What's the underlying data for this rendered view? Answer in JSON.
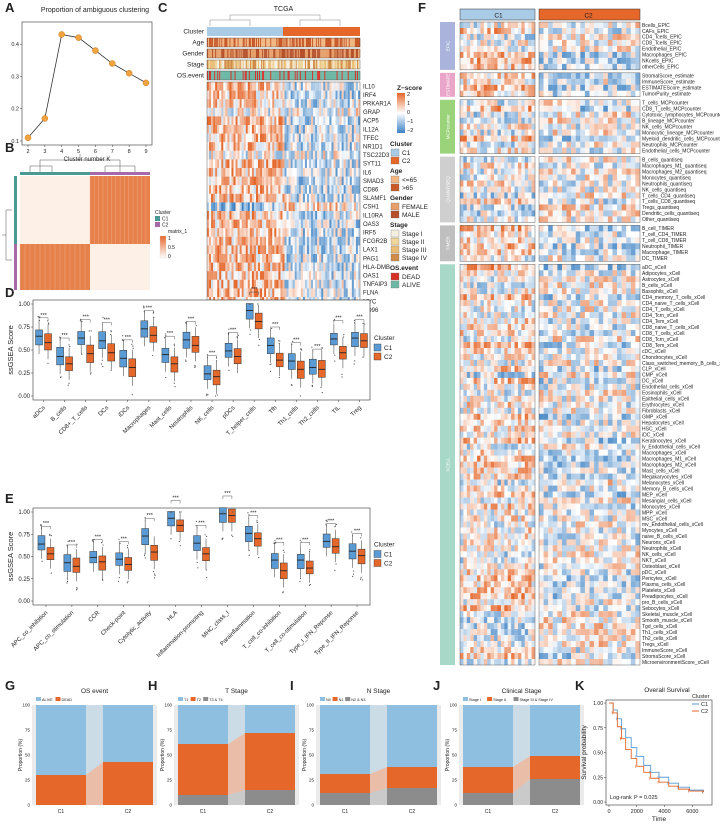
{
  "colors": {
    "c1": "#5b9bd5",
    "c2": "#e5672a",
    "c1_light": "#a9cbe6",
    "c2_light": "#f3a97c",
    "grey": "#8c8c8c",
    "heat_hi": "#e5672a",
    "heat_lo": "#3d82c4"
  },
  "panel_letters": [
    "A",
    "B",
    "C",
    "D",
    "E",
    "F",
    "G",
    "H",
    "I",
    "J",
    "K"
  ],
  "chart_data": [
    {
      "id": "A",
      "type": "line",
      "title": "Proportion of ambiguous clustering",
      "xlabel": "Cluster number K",
      "ylabel": "",
      "x": [
        2,
        3,
        4,
        5,
        6,
        7,
        8,
        9
      ],
      "y": [
        0.11,
        0.17,
        0.43,
        0.42,
        0.38,
        0.34,
        0.31,
        0.28
      ],
      "xlim": [
        2,
        9
      ],
      "ylim": [
        0.1,
        0.45
      ],
      "yticks": [
        "0.1",
        "0.2",
        "0.3",
        "0.4"
      ]
    },
    {
      "id": "B",
      "type": "heatmap",
      "title": "Consensus matrix",
      "legend_title": "Cluster",
      "legend_items": [
        "C1",
        "C2"
      ],
      "scale_title": "matrix_1",
      "scale_ticks": [
        "1",
        "0.5",
        "0"
      ]
    },
    {
      "id": "C",
      "type": "heatmap",
      "title": "TCGA",
      "annotation_rows": [
        "Cluster",
        "Age",
        "Gender",
        "Stage",
        "OS.event"
      ],
      "genes": [
        "IL10",
        "IRF4",
        "PRKAR1A",
        "GRAP",
        "ACP5",
        "IL12A",
        "TFEC",
        "NR1D1",
        "TSC22D3",
        "SYT11",
        "IL6",
        "SMAD3",
        "CD86",
        "SLAMF1",
        "CSH1",
        "IL10RA",
        "OAS3",
        "IRF5",
        "FCGR2B",
        "LAX1",
        "PAG1",
        "HLA-DMB",
        "OAS1",
        "TNFAIP3",
        "FLNA",
        "MYC",
        "CD96"
      ],
      "zscore_title": "Z−score",
      "zscore_ticks": [
        "2",
        "1",
        "0",
        "−1",
        "−2"
      ],
      "legends": [
        {
          "title": "Cluster",
          "items": [
            "C1",
            "C2"
          ]
        },
        {
          "title": "Age",
          "items": [
            "<=65",
            ">65"
          ]
        },
        {
          "title": "Gender",
          "items": [
            "FEMALE",
            "MALE"
          ]
        },
        {
          "title": "Stage",
          "items": [
            "Stage I",
            "Stage II",
            "Stage III",
            "Stage IV"
          ]
        },
        {
          "title": "OS.event",
          "items": [
            "DEAD",
            "ALIVE"
          ]
        }
      ]
    },
    {
      "id": "D",
      "type": "box",
      "ylabel": "ssGSEA Score",
      "ylim": [
        0,
        1
      ],
      "yticks": [
        "0.00",
        "0.25",
        "0.50",
        "0.75",
        "1.00"
      ],
      "legend_title": "Cluster",
      "legend_items": [
        "C1",
        "C2"
      ],
      "categories": [
        "aDCs",
        "B_cells",
        "CD8+_T_cells",
        "DCs",
        "iDCs",
        "Macrophages",
        "Mast_cells",
        "Neutrophils",
        "NK_cells",
        "pDCs",
        "T_helper_cells",
        "Tfh",
        "Th1_cells",
        "Th2_cells",
        "TIL",
        "Treg"
      ],
      "significance": [
        "***",
        "***",
        "***",
        "***",
        "***",
        "***",
        "***",
        "***",
        "***",
        "***",
        "***",
        "***",
        "***",
        "***",
        "***",
        "***"
      ],
      "series": [
        {
          "name": "C1",
          "median": [
            0.65,
            0.43,
            0.63,
            0.6,
            0.41,
            0.73,
            0.45,
            0.61,
            0.24,
            0.49,
            0.93,
            0.55,
            0.38,
            0.31,
            0.62,
            0.63
          ]
        },
        {
          "name": "C2",
          "median": [
            0.58,
            0.35,
            0.46,
            0.47,
            0.31,
            0.66,
            0.35,
            0.55,
            0.21,
            0.43,
            0.81,
            0.39,
            0.29,
            0.29,
            0.47,
            0.6
          ]
        }
      ]
    },
    {
      "id": "E",
      "type": "box",
      "ylabel": "ssGSEA Score",
      "ylim": [
        0,
        1
      ],
      "yticks": [
        "0.00",
        "0.25",
        "0.50",
        "0.75",
        "1.00"
      ],
      "legend_title": "Cluster",
      "legend_items": [
        "C1",
        "C2"
      ],
      "categories": [
        "APC_co_inhibition",
        "APC_co_stimulation",
        "CCR",
        "Check-point",
        "Cytolytic_activity",
        "HLA",
        "Inflammation-promoting",
        "MHC_class_I",
        "Parainflammation",
        "T_cell_co-inhibition",
        "T_cell_co-stimulation",
        "Type_I_IFN_Reponse",
        "Type_II_IFN_Reponse"
      ],
      "significance": [
        "***",
        "***",
        "***",
        "***",
        "***",
        "***",
        "***",
        "***",
        "***",
        "***",
        "***",
        "***",
        "***"
      ],
      "series": [
        {
          "name": "C1",
          "median": [
            0.64,
            0.43,
            0.49,
            0.47,
            0.73,
            0.93,
            0.65,
            0.98,
            0.76,
            0.46,
            0.46,
            0.67,
            0.56
          ]
        },
        {
          "name": "C2",
          "median": [
            0.53,
            0.39,
            0.44,
            0.41,
            0.55,
            0.85,
            0.53,
            0.96,
            0.7,
            0.34,
            0.37,
            0.61,
            0.51
          ]
        }
      ]
    },
    {
      "id": "F",
      "type": "heatmap",
      "clusters": [
        "C1",
        "C2"
      ],
      "groups": [
        {
          "name": "EPIC",
          "rows": [
            "Bcells_EPIC",
            "CAFs_EPIC",
            "CD4_Tcells_EPIC",
            "CD8_Tcells_EPIC",
            "Endothelial_EPIC",
            "Macrophages_EPIC",
            "NKcells_EPIC",
            "otherCells_EPIC"
          ]
        },
        {
          "name": "ESTIMATE",
          "rows": [
            "StromalScore_estimate",
            "ImmuneScore_estimate",
            "ESTIMATEScore_estimate",
            "TumorPurity_estimate"
          ]
        },
        {
          "name": "MCPcounter",
          "rows": [
            "T_cells_MCPcounter",
            "CD8_T_cells_MCPcounter",
            "Cytotoxic_lymphocytes_MCPcounter",
            "B_lineage_MCPcounter",
            "NK_cells_MCPcounter",
            "Monocytic_lineage_MCPcounter",
            "Myeloid_dendritic_cells_MCPcounter",
            "Neutrophils_MCPcounter",
            "Endothelial_cells_MCPcounter"
          ]
        },
        {
          "name": "QUANTISEQ",
          "rows": [
            "B_cells_quantiseq",
            "Macrophages_M1_quantiseq",
            "Macrophages_M2_quantiseq",
            "Monocytes_quantiseq",
            "Neutrophils_quantiseq",
            "NK_cells_quantiseq",
            "T_cells_CD4_quantiseq",
            "T_cells_CD8_quantiseq",
            "Tregs_quantiseq",
            "Dendritic_cells_quantiseq",
            "Other_quantiseq"
          ]
        },
        {
          "name": "TIMER",
          "rows": [
            "B_cell_TIMER",
            "T_cell_CD4_TIMER",
            "T_cell_CD8_TIMER",
            "Neutrophil_TIMER",
            "Macrophage_TIMER",
            "DC_TIMER"
          ]
        },
        {
          "name": "XCELL",
          "rows": [
            "aDC_xCell",
            "Adipocytes_xCell",
            "Astrocytes_xCell",
            "B_cells_xCell",
            "Basophils_xCell",
            "CD4_memory_T_cells_xCell",
            "CD4_naive_T_cells_xCell",
            "CD4_T_cells_xCell",
            "CD4_Tcm_xCell",
            "CD4_Tem_xCell",
            "CD8_naive_T_cells_xCell",
            "CD8_T_cells_xCell",
            "CD8_Tcm_xCell",
            "CD8_Tem_xCell",
            "cDC_xCell",
            "Chondrocytes_xCell",
            "Class_switched_memory_B_cells_xCell",
            "CLP_xCell",
            "CMP_xCell",
            "DC_xCell",
            "Endothelial_cells_xCell",
            "Eosinophils_xCell",
            "Epithelial_cells_xCell",
            "Erythrocytes_xCell",
            "Fibroblasts_xCell",
            "GMP_xCell",
            "Hepatocytes_xCell",
            "HSC_xCell",
            "iDC_xCell",
            "Keratinocytes_xCell",
            "ly_Endothelial_cells_xCell",
            "Macrophages_xCell",
            "Macrophages_M1_xCell",
            "Macrophages_M2_xCell",
            "Mast_cells_xCell",
            "Megakaryocytes_xCell",
            "Melanocytes_xCell",
            "Memory_B_cells_xCell",
            "MEP_xCell",
            "Mesangial_cells_xCell",
            "Monocytes_xCell",
            "MPP_xCell",
            "MSC_xCell",
            "mv_Endothelial_cells_xCell",
            "Myocytes_xCell",
            "naive_B_cells_xCell",
            "Neurons_xCell",
            "Neutrophils_xCell",
            "NK_cells_xCell",
            "NKT_xCell",
            "Osteoblast_xCell",
            "pDC_xCell",
            "Pericytes_xCell",
            "Plasma_cells_xCell",
            "Platelets_xCell",
            "Preadipocytes_xCell",
            "pro_B_cells_xCell",
            "Sebocytes_xCell",
            "Skeletal_muscle_xCell",
            "Smooth_muscle_xCell",
            "Tgd_cells_xCell",
            "Th1_cells_xCell",
            "Th2_cells_xCell",
            "Tregs_xCell",
            "ImmuneScore_xCell",
            "StromaScore_xCell",
            "MicroenvironmentScore_xCell"
          ]
        }
      ]
    },
    {
      "id": "G",
      "type": "stacked_bar",
      "title": "OS event",
      "ylabel": "Proportion (%)",
      "yticks": [
        "0",
        "25",
        "50",
        "75",
        "100"
      ],
      "categories": [
        "C1",
        "C2"
      ],
      "legend_items": [
        "ALIVE",
        "DEAD"
      ],
      "series": [
        {
          "name": "DEAD",
          "values": [
            30,
            43
          ]
        },
        {
          "name": "ALIVE",
          "values": [
            70,
            57
          ]
        }
      ]
    },
    {
      "id": "H",
      "type": "stacked_bar",
      "title": "T Stage",
      "ylabel": "Proportion (%)",
      "yticks": [
        "0",
        "25",
        "50",
        "75",
        "100"
      ],
      "categories": [
        "C1",
        "C2"
      ],
      "legend_items": [
        "T1",
        "T2",
        "T3 & T4"
      ],
      "series": [
        {
          "name": "T3 & T4",
          "values": [
            10,
            15
          ]
        },
        {
          "name": "T2",
          "values": [
            51,
            57
          ]
        },
        {
          "name": "T1",
          "values": [
            39,
            28
          ]
        }
      ]
    },
    {
      "id": "I",
      "type": "stacked_bar",
      "title": "N Stage",
      "ylabel": "Proportion (%)",
      "yticks": [
        "0",
        "25",
        "50",
        "75",
        "100"
      ],
      "categories": [
        "C1",
        "C2"
      ],
      "legend_items": [
        "N0",
        "N1",
        "N2 & N3"
      ],
      "series": [
        {
          "name": "N2 & N3",
          "values": [
            12,
            17
          ]
        },
        {
          "name": "N1",
          "values": [
            19,
            21
          ]
        },
        {
          "name": "N0",
          "values": [
            69,
            62
          ]
        }
      ]
    },
    {
      "id": "J",
      "type": "stacked_bar",
      "title": "Clinical Stage",
      "ylabel": "Proportion (%)",
      "yticks": [
        "0",
        "25",
        "50",
        "75",
        "100"
      ],
      "categories": [
        "C1",
        "C2"
      ],
      "legend_items": [
        "Stage I",
        "Stage II",
        "Stage III & Stage IV"
      ],
      "series": [
        {
          "name": "Stage III & Stage IV",
          "values": [
            12,
            26
          ]
        },
        {
          "name": "Stage II",
          "values": [
            26,
            23
          ]
        },
        {
          "name": "Stage I",
          "values": [
            62,
            51
          ]
        }
      ]
    },
    {
      "id": "K",
      "type": "line",
      "title": "Overall Survival",
      "xlabel": "Time",
      "ylabel": "Survival probability",
      "xticks": [
        "0",
        "2000",
        "4000",
        "6000"
      ],
      "yticks": [
        "0.00",
        "0.25",
        "0.50",
        "0.75",
        "1.00"
      ],
      "xlim": [
        0,
        7200
      ],
      "ylim": [
        0,
        1
      ],
      "legend_title": "Cluster",
      "legend_items": [
        "C1",
        "C2"
      ],
      "annotation": "Log-rank",
      "pvalue": "P = 0.025",
      "series": [
        {
          "name": "C1",
          "x": [
            0,
            300,
            600,
            900,
            1200,
            1600,
            2000,
            2500,
            3000,
            3600,
            4300,
            5000,
            5800,
            6800
          ],
          "y": [
            1,
            0.93,
            0.84,
            0.74,
            0.65,
            0.55,
            0.46,
            0.37,
            0.3,
            0.25,
            0.19,
            0.15,
            0.12,
            0.1
          ]
        },
        {
          "name": "C2",
          "x": [
            0,
            300,
            600,
            900,
            1200,
            1600,
            2000,
            2500,
            3000,
            3600,
            4300,
            5000,
            5800,
            6800
          ],
          "y": [
            1,
            0.9,
            0.76,
            0.64,
            0.53,
            0.44,
            0.36,
            0.3,
            0.24,
            0.2,
            0.16,
            0.13,
            0.11,
            0.1
          ]
        }
      ]
    }
  ]
}
